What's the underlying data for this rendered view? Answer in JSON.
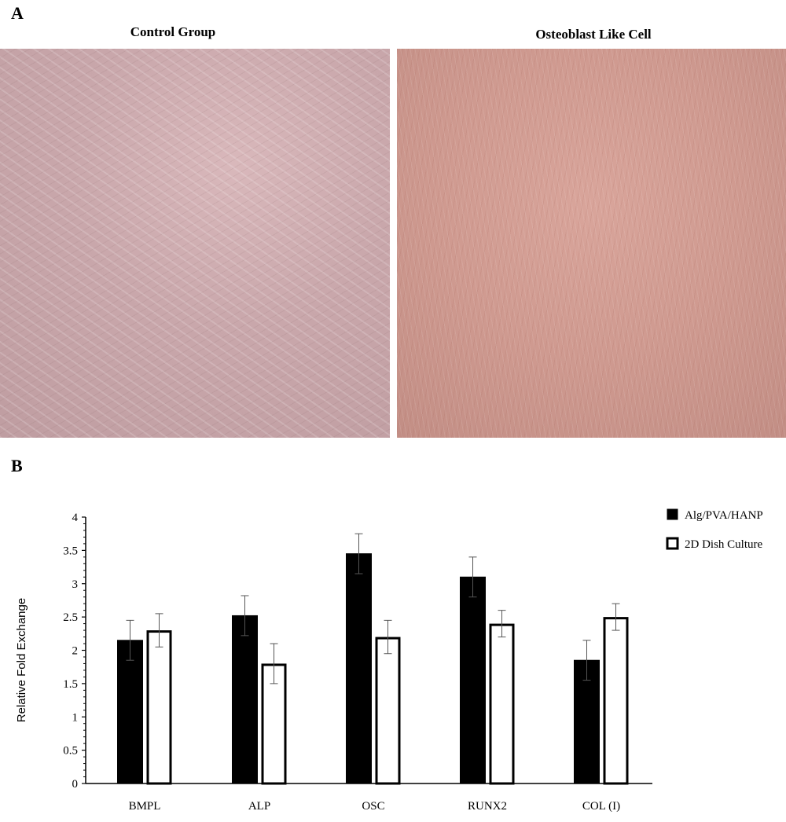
{
  "panel_a": {
    "letter": "A",
    "left_title": "Control Group",
    "right_title": "Osteoblast Like Cell"
  },
  "panel_b": {
    "letter": "B"
  },
  "colors": {
    "series1": "#000000",
    "series2": "#ffffff",
    "outline": "#000000",
    "error_bar": "#555555"
  },
  "chart_data": {
    "type": "bar",
    "categories": [
      "BMPL",
      "ALP",
      "OSC",
      "RUNX2",
      "COL (I)"
    ],
    "series": [
      {
        "name": "Alg/PVA/HANP",
        "values": [
          2.15,
          2.52,
          3.45,
          3.1,
          1.85
        ],
        "errors": [
          0.3,
          0.3,
          0.3,
          0.3,
          0.3
        ]
      },
      {
        "name": "2D Dish Culture",
        "values": [
          2.3,
          1.8,
          2.2,
          2.4,
          2.5
        ],
        "errors": [
          0.25,
          0.3,
          0.25,
          0.2,
          0.2
        ]
      }
    ],
    "ylabel": "Relative Fold Exchange",
    "xlabel": "",
    "ylim": [
      0,
      4
    ],
    "yticks": [
      "0",
      "0.5",
      "1",
      "1.5",
      "2",
      "2.5",
      "3",
      "3.5",
      "4"
    ],
    "legend_position": "top-right",
    "grid": false
  }
}
